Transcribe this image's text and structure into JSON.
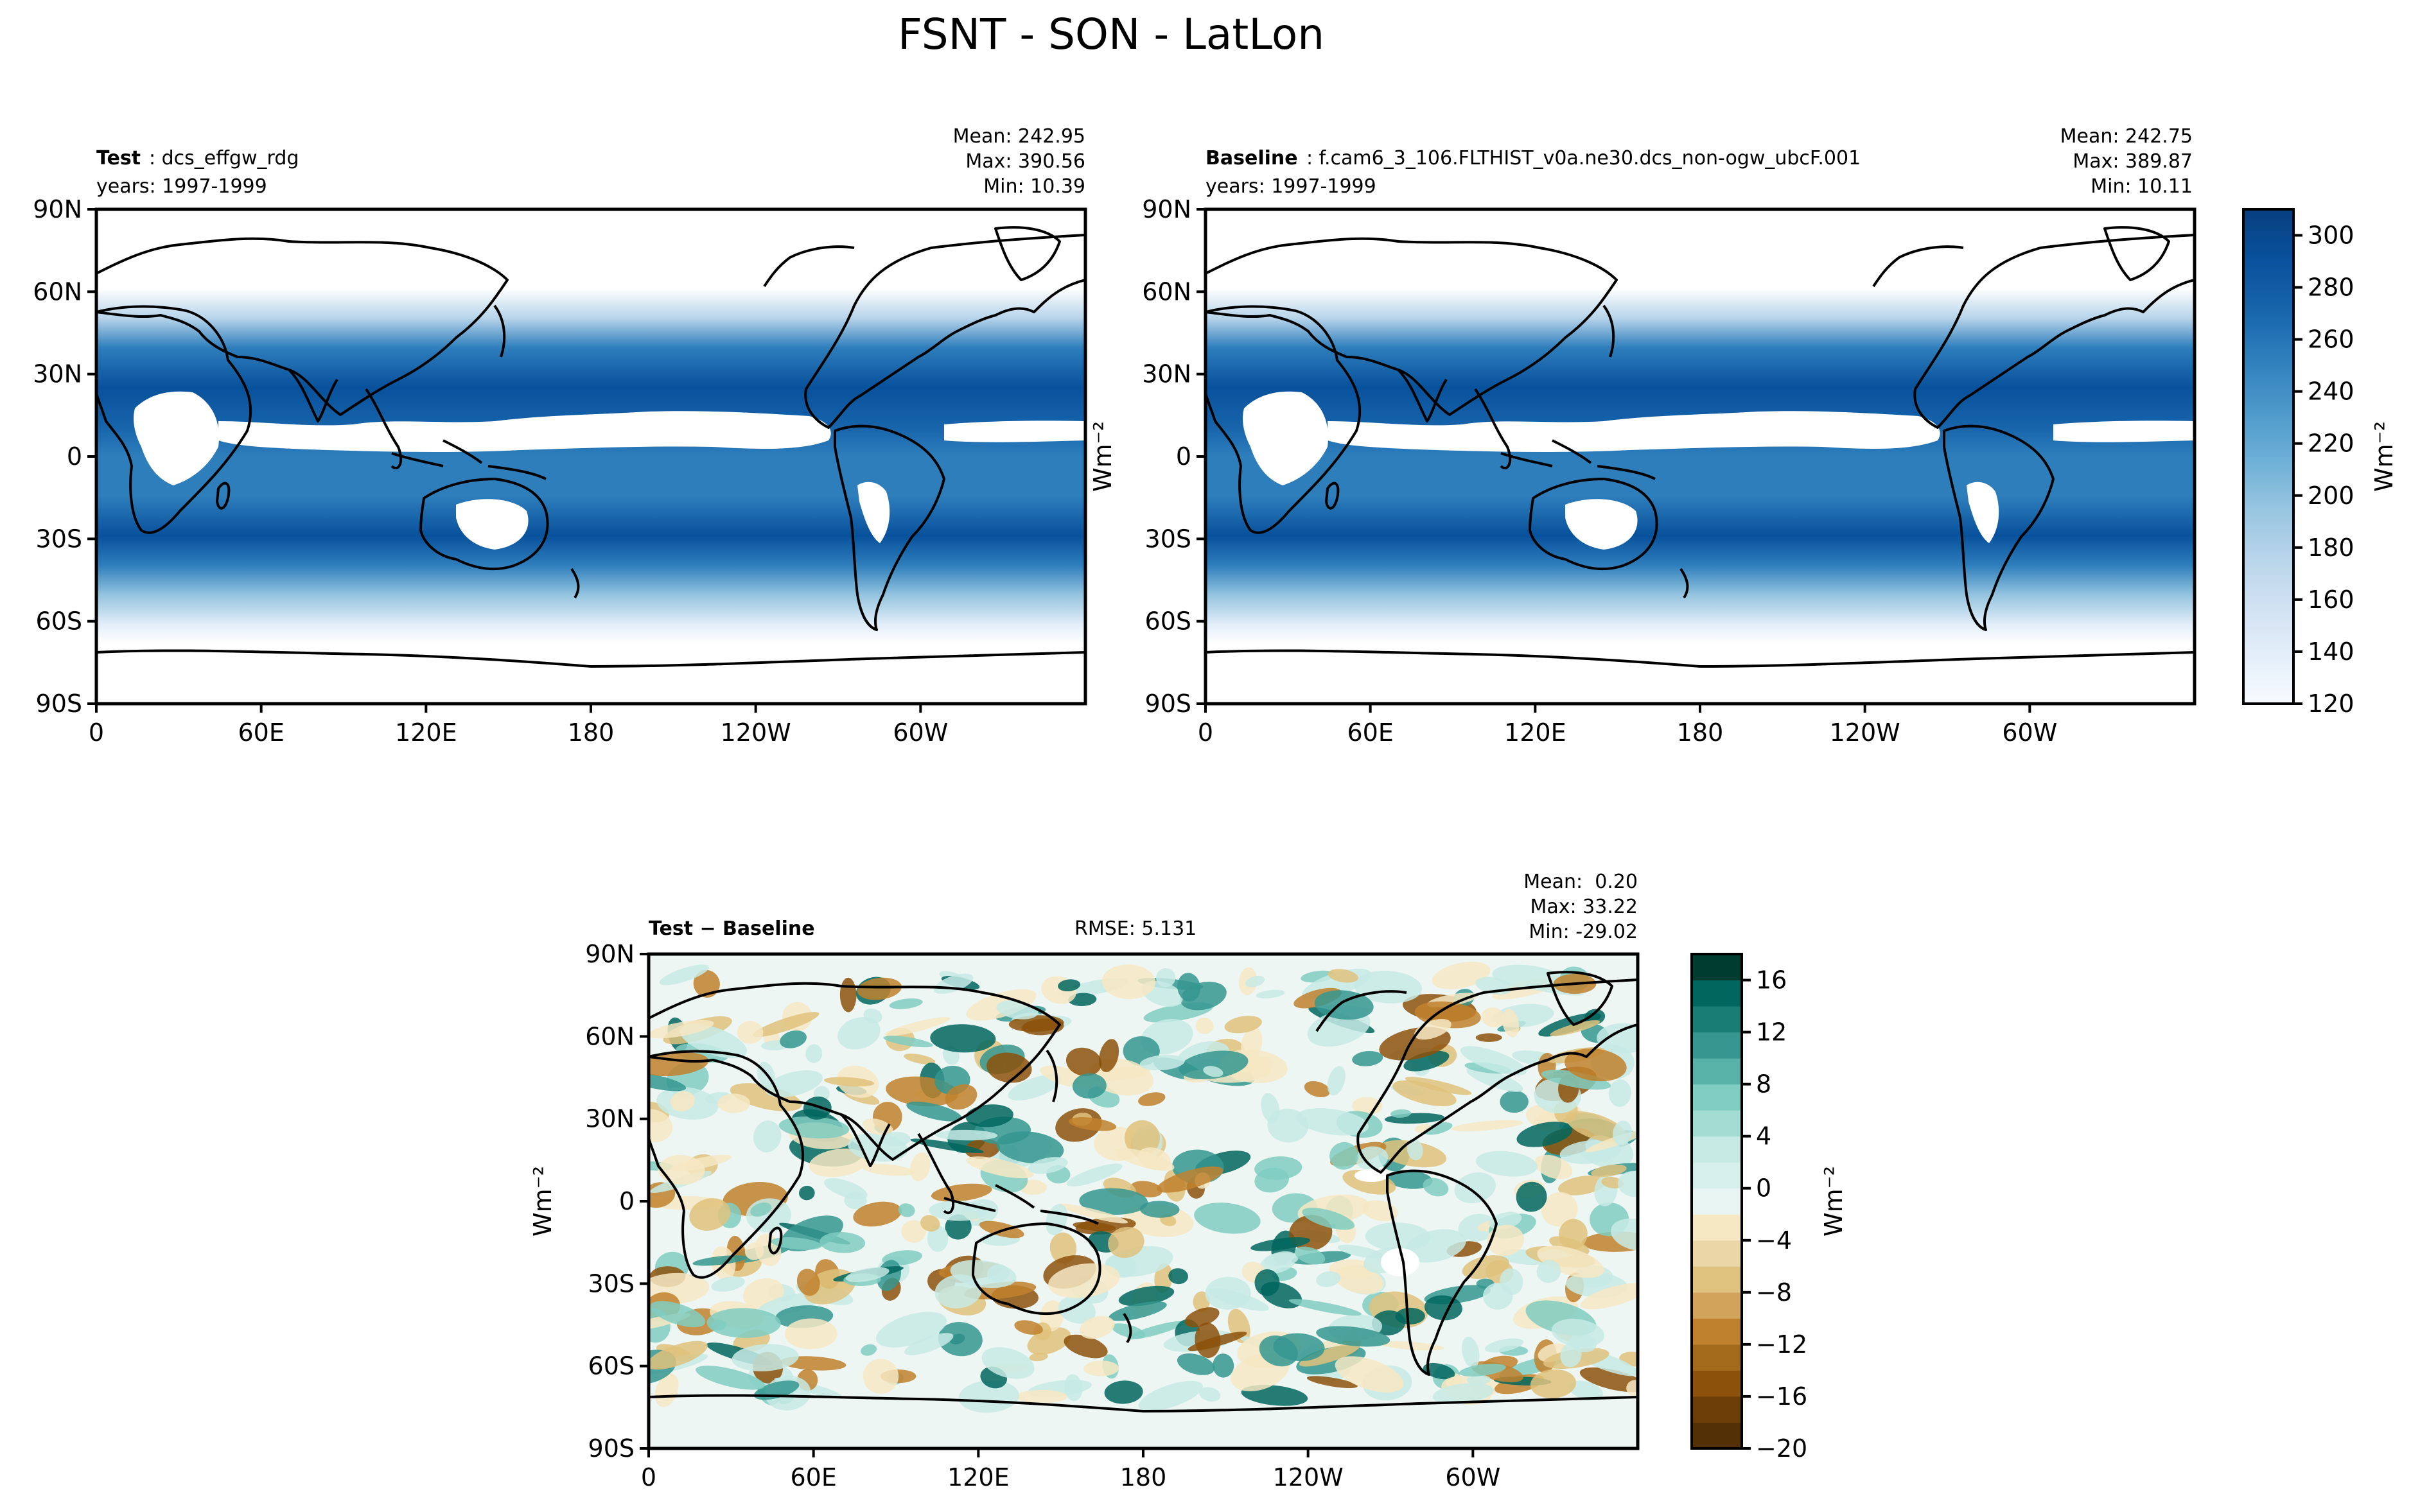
{
  "title": "FSNT - SON - LatLon",
  "lon_ticks": [
    "0",
    "60E",
    "120E",
    "180",
    "120W",
    "60W"
  ],
  "lat_ticks": [
    "90N",
    "60N",
    "30N",
    "0",
    "30S",
    "60S",
    "90S"
  ],
  "colors": {
    "blues": [
      "#f7fbff",
      "#e3eef9",
      "#d0e1f2",
      "#b7d4ea",
      "#94c4df",
      "#6aaed6",
      "#4a98c9",
      "#2e7ebc",
      "#1764ab",
      "#08519c",
      "#083f7f"
    ],
    "diverging_neg": [
      "#543005",
      "#8c510a",
      "#bf812d",
      "#dfc27d",
      "#f6e8c3"
    ],
    "diverging_pos": [
      "#e8f4f1",
      "#c7eae5",
      "#80cdc1",
      "#35978f",
      "#01665e",
      "#003c30"
    ],
    "coast": "#000000"
  },
  "chart_data": [
    {
      "type": "heatmap",
      "panel": "test",
      "label_bold": "Test",
      "label_text": ": dcs_effgw_rdg",
      "years": "years: 1997-1999",
      "stats": [
        "Mean: 242.95",
        "Max: 390.56",
        "Min: 10.39"
      ],
      "ylabel": "",
      "lon_range": [
        0,
        360
      ],
      "lat_range": [
        -90,
        90
      ],
      "clim": [
        120,
        310
      ]
    },
    {
      "type": "heatmap",
      "panel": "baseline",
      "label_bold": "Baseline",
      "label_text": ": f.cam6_3_106.FLTHIST_v0a.ne30.dcs_non-ogw_ubcF.001",
      "years": "years: 1997-1999",
      "stats": [
        "Mean: 242.75",
        "Max: 389.87",
        "Min: 10.11"
      ],
      "ylabel": "Wm⁻²",
      "lon_range": [
        0,
        360
      ],
      "lat_range": [
        -90,
        90
      ],
      "clim": [
        120,
        310
      ],
      "colorbar": {
        "ticks": [
          120,
          140,
          160,
          180,
          200,
          220,
          240,
          260,
          280,
          300
        ],
        "labels": [
          "120",
          "140",
          "160",
          "180",
          "200",
          "220",
          "240",
          "260",
          "280",
          "300"
        ],
        "range": [
          120,
          310
        ],
        "label": "Wm⁻²"
      }
    },
    {
      "type": "heatmap",
      "panel": "diff",
      "label_bold": "Test − Baseline",
      "rmse": "RMSE: 5.131",
      "stats": [
        "Mean:  0.20",
        "Max: 33.22",
        "Min: -29.02"
      ],
      "ylabel": "Wm⁻²",
      "lon_range": [
        0,
        360
      ],
      "lat_range": [
        -90,
        90
      ],
      "clim": [
        -20,
        18
      ],
      "colorbar": {
        "ticks": [
          -20,
          -16,
          -12,
          -8,
          -4,
          0,
          4,
          8,
          12,
          16
        ],
        "labels": [
          "−20",
          "−16",
          "−12",
          "−8",
          "−4",
          "0",
          "4",
          "8",
          "12",
          "16"
        ],
        "range": [
          -20,
          18
        ],
        "label": "Wm⁻²"
      }
    }
  ]
}
